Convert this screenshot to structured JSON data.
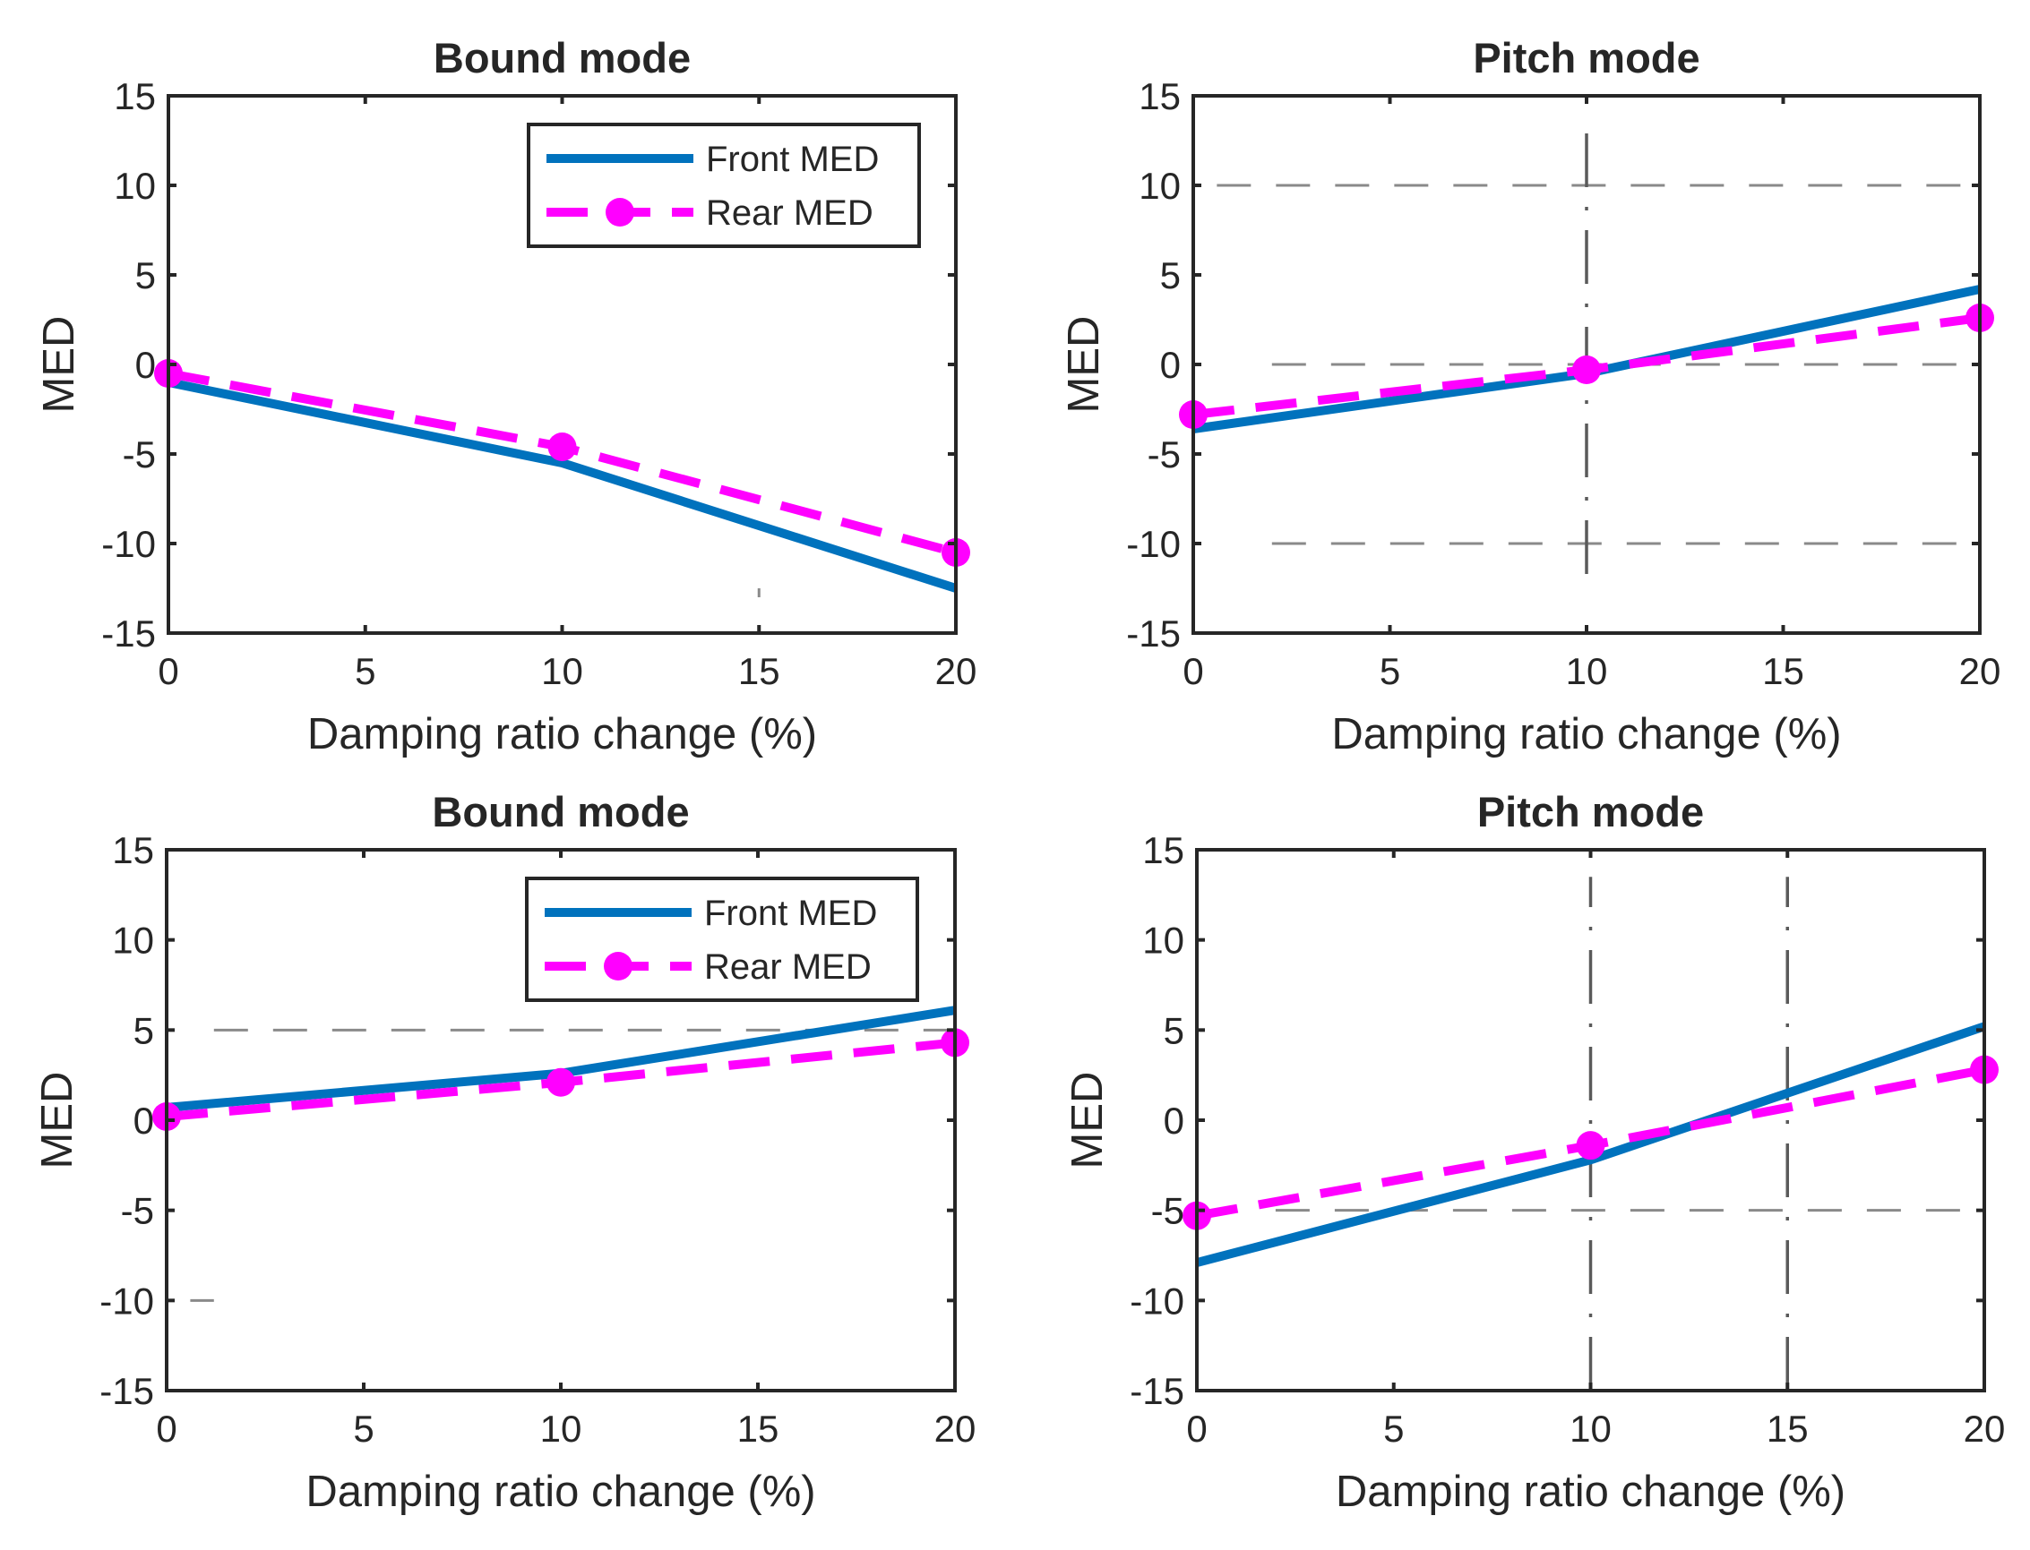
{
  "figure": {
    "colors": {
      "front": "#0072BD",
      "rear": "#FF00FF",
      "axes": "#262626",
      "grid": "#8a8a8a"
    }
  },
  "chart_data": [
    {
      "type": "line",
      "title": "Bound mode",
      "xlabel": "Damping ratio change (%)",
      "ylabel": "MED",
      "xlim": [
        0,
        20
      ],
      "ylim": [
        -15,
        15
      ],
      "xticks": [
        "0",
        "5",
        "10",
        "15",
        "20"
      ],
      "yticks": [
        "15",
        "10",
        "5",
        "0",
        "-5",
        "-10",
        "-15"
      ],
      "legend": {
        "position": "top-right"
      },
      "series": [
        {
          "name": "Front MED",
          "style": "solid",
          "x": [
            0,
            10,
            20
          ],
          "y": [
            -1.0,
            -5.5,
            -12.5
          ]
        },
        {
          "name": "Rear MED",
          "style": "dashed-circle",
          "x": [
            0,
            10,
            20
          ],
          "y": [
            -0.5,
            -4.6,
            -10.5
          ]
        }
      ],
      "reference_lines": {
        "horizontal": [],
        "vertical": [],
        "fragments": [
          {
            "orientation": "vertical",
            "x": 15,
            "y": [
              -13,
              -12.5
            ]
          }
        ]
      }
    },
    {
      "type": "line",
      "title": "Pitch mode",
      "xlabel": "Damping ratio change (%)",
      "ylabel": "MED",
      "xlim": [
        0,
        20
      ],
      "ylim": [
        -15,
        15
      ],
      "xticks": [
        "0",
        "5",
        "10",
        "15",
        "20"
      ],
      "yticks": [
        "15",
        "10",
        "5",
        "0",
        "-5",
        "-10",
        "-15"
      ],
      "series": [
        {
          "name": "Front MED",
          "style": "solid",
          "x": [
            0,
            10,
            20
          ],
          "y": [
            -3.6,
            -0.5,
            4.2
          ]
        },
        {
          "name": "Rear MED",
          "style": "dashed-circle",
          "x": [
            0,
            10,
            20
          ],
          "y": [
            -2.8,
            -0.3,
            2.6
          ]
        }
      ],
      "reference_lines": {
        "horizontal": [
          {
            "y": 10,
            "x": [
              0.6,
              20
            ]
          },
          {
            "y": 0,
            "x": [
              2.0,
              20
            ]
          },
          {
            "y": -10,
            "x": [
              2.0,
              20
            ]
          }
        ],
        "vertical": [
          {
            "x": 10,
            "y": [
              -11.7,
              13.7
            ]
          }
        ],
        "fragments": []
      }
    },
    {
      "type": "line",
      "title": "Bound mode",
      "xlabel": "Damping ratio change (%)",
      "ylabel": "MED",
      "xlim": [
        0,
        20
      ],
      "ylim": [
        -15,
        15
      ],
      "xticks": [
        "0",
        "5",
        "10",
        "15",
        "20"
      ],
      "yticks": [
        "15",
        "10",
        "5",
        "0",
        "-5",
        "-10",
        "-15"
      ],
      "legend": {
        "position": "top-right"
      },
      "series": [
        {
          "name": "Front MED",
          "style": "solid",
          "x": [
            0,
            10,
            20
          ],
          "y": [
            0.7,
            2.6,
            6.1
          ]
        },
        {
          "name": "Rear MED",
          "style": "dashed-circle",
          "x": [
            0,
            10,
            20
          ],
          "y": [
            0.2,
            2.1,
            4.3
          ]
        }
      ],
      "reference_lines": {
        "horizontal": [
          {
            "y": 5,
            "x": [
              1.2,
              20
            ]
          }
        ],
        "vertical": [],
        "fragments": [
          {
            "orientation": "horizontal",
            "y": -10,
            "x": [
              0.6,
              1.2
            ]
          }
        ]
      }
    },
    {
      "type": "line",
      "title": "Pitch mode",
      "xlabel": "Damping ratio change (%)",
      "ylabel": "MED",
      "xlim": [
        0,
        20
      ],
      "ylim": [
        -15,
        15
      ],
      "xticks": [
        "0",
        "5",
        "10",
        "15",
        "20"
      ],
      "yticks": [
        "15",
        "10",
        "5",
        "0",
        "-5",
        "-10",
        "-15"
      ],
      "series": [
        {
          "name": "Front MED",
          "style": "solid",
          "x": [
            0,
            10,
            20
          ],
          "y": [
            -7.9,
            -2.2,
            5.2
          ]
        },
        {
          "name": "Rear MED",
          "style": "dashed-circle",
          "x": [
            0,
            10,
            20
          ],
          "y": [
            -5.3,
            -1.4,
            2.8
          ]
        }
      ],
      "reference_lines": {
        "horizontal": [
          {
            "y": -5,
            "x": [
              2.0,
              20
            ]
          }
        ],
        "vertical": [
          {
            "x": 10,
            "y": [
              -15,
              13.5
            ]
          },
          {
            "x": 15,
            "y": [
              -15,
              13.5
            ]
          }
        ],
        "fragments": []
      }
    }
  ]
}
